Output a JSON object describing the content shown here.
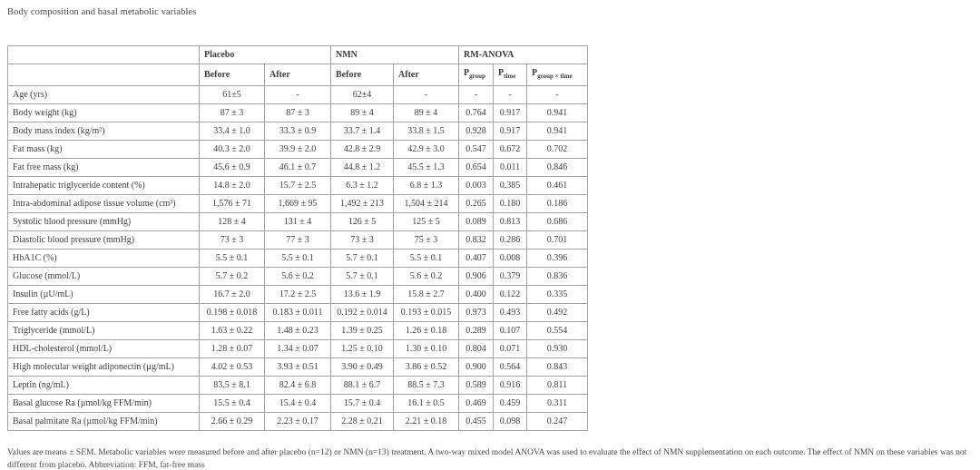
{
  "title": "Body composition and basal metabolic variables",
  "table": {
    "header_groups": [
      {
        "label": "",
        "colspan": 1
      },
      {
        "label": "Placebo",
        "colspan": 2
      },
      {
        "label": "NMN",
        "colspan": 2
      },
      {
        "label": "RM-ANOVA",
        "colspan": 3
      }
    ],
    "sub_headers": [
      "Before",
      "After",
      "Before",
      "After"
    ],
    "p_headers": [
      {
        "base": "P",
        "sub": "group"
      },
      {
        "base": "P",
        "sub": "time"
      },
      {
        "base": "P",
        "sub": "group × time"
      }
    ],
    "rows": [
      {
        "label": "Age (yrs)",
        "values": [
          "61±5",
          "-",
          "62±4",
          "-",
          "-",
          "-",
          "-"
        ]
      },
      {
        "label": "Body weight (kg)",
        "values": [
          "87 ± 3",
          "87 ± 3",
          "89 ± 4",
          "89 ± 4",
          "0.764",
          "0.917",
          "0.941"
        ]
      },
      {
        "label": "Body mass index (kg/m²)",
        "values": [
          "33.4 ± 1.0",
          "33.3 ± 0.9",
          "33.7 ± 1.4",
          "33.8 ± 1.5",
          "0.928",
          "0.917",
          "0.941"
        ]
      },
      {
        "label": "Fat mass (kg)",
        "values": [
          "40.3 ± 2.0",
          "39.9 ± 2.0",
          "42.8 ± 2.9",
          "42.9 ± 3.0",
          "0.547",
          "0.672",
          "0.702"
        ]
      },
      {
        "label": "Fat free mass (kg)",
        "values": [
          "45.6 ± 0.9",
          "46.1 ± 0.7",
          "44.8 ± 1.2",
          "45.5 ± 1.3",
          "0.654",
          "0.011",
          "0.846"
        ]
      },
      {
        "label": "Intrahepatic triglyceride content (%)",
        "values": [
          "14.8 ± 2.0",
          "15.7 ± 2.5",
          "6.3 ± 1.2",
          "6.8 ± 1.3",
          "0.003",
          "0.385",
          "0.461"
        ]
      },
      {
        "label": "Intra-abdominal adipose tissue volume (cm³)",
        "values": [
          "1,576 ± 71",
          "1,669 ± 95",
          "1,492 ± 213",
          "1,504 ± 214",
          "0.265",
          "0.180",
          "0.186"
        ]
      },
      {
        "label": "Systolic blood pressure (mmHg)",
        "values": [
          "128 ± 4",
          "131 ± 4",
          "126 ± 5",
          "125 ± 5",
          "0.089",
          "0.813",
          "0.686"
        ]
      },
      {
        "label": "Diastolic blood pressure (mmHg)",
        "values": [
          "73 ± 3",
          "77 ± 3",
          "73 ± 3",
          "75 ± 3",
          "0.832",
          "0.286",
          "0.701"
        ]
      },
      {
        "label": "HbA1C (%)",
        "values": [
          "5.5 ± 0.1",
          "5.5 ± 0.1",
          "5.7 ± 0.1",
          "5.5 ± 0.1",
          "0.407",
          "0.008",
          "0.396"
        ]
      },
      {
        "label": "Glucose (mmol/L)",
        "values": [
          "5.7 ± 0.2",
          "5.6 ± 0.2",
          "5.7 ± 0.1",
          "5.6 ± 0.2",
          "0.906",
          "0.379",
          "0.836"
        ]
      },
      {
        "label": "Insulin (µU/mL)",
        "values": [
          "16.7 ± 2.0",
          "17.2 ± 2.5",
          "13.6 ± 1.9",
          "15.8 ± 2.7",
          "0.400",
          "0.122",
          "0.335"
        ]
      },
      {
        "label": "Free fatty acids (g/L)",
        "values": [
          "0.198 ± 0.018",
          "0.183 ± 0.011",
          "0.192 ± 0.014",
          "0.193 ± 0.015",
          "0.973",
          "0.493",
          "0.492"
        ]
      },
      {
        "label": "Triglyceride (mmol/L)",
        "values": [
          "1.63 ± 0.22",
          "1.48 ± 0.23",
          "1.39 ± 0.25",
          "1.26 ± 0.18",
          "0.289",
          "0.107",
          "0.554"
        ]
      },
      {
        "label": "HDL-cholesterol (mmol/L)",
        "values": [
          "1.28 ± 0.07",
          "1.34 ± 0.07",
          "1.25 ± 0.10",
          "1.30 ± 0.10",
          "0.804",
          "0.071",
          "0.930"
        ]
      },
      {
        "label": "High molecular weight adiponectin (µg/mL)",
        "values": [
          "4.02 ± 0.53",
          "3.93 ± 0.51",
          "3.90 ± 0.49",
          "3.86 ± 0.52",
          "0.900",
          "0.564",
          "0.843"
        ]
      },
      {
        "label": "Leptin (ng/mL)",
        "values": [
          "83.5 ± 8.1",
          "82.4 ± 6.8",
          "88.1 ± 6.7",
          "88.5 ± 7.3",
          "0.589",
          "0.916",
          "0.811"
        ]
      },
      {
        "label": "Basal glucose Ra (µmol/kg FFM/min)",
        "values": [
          "15.5 ± 0.4",
          "15.4 ± 0.4",
          "15.7 ± 0.4",
          "16.1 ± 0.5",
          "0.469",
          "0.459",
          "0.311"
        ]
      },
      {
        "label": "Basal palmitate Ra (µmol/kg FFM/min)",
        "values": [
          "2.66 ± 0.29",
          "2.23 ± 0.17",
          "2.28 ± 0.21",
          "2.21 ± 0.18",
          "0.455",
          "0.098",
          "0.247"
        ]
      }
    ]
  },
  "footnote": "Values are means ± SEM. Metabolic variables were measured before and after placebo (n=12) or NMN (n=13) treatment. A two-way mixed model ANOVA was used to evaluate the effect of NMN supplementation on each outcome. The effect of NMN on these variables was not different from placebo. Abbreviation: FFM, fat-free mass"
}
